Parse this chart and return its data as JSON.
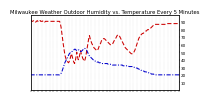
{
  "title": "Milwaukee Weather Outdoor Humidity vs. Temperature Every 5 Minutes",
  "line1_color": "#cc0000",
  "line2_color": "#0000cc",
  "line1_style": "--",
  "line2_style": "-.",
  "bg_color": "#ffffff",
  "grid_color": "#bbbbbb",
  "humidity": [
    93,
    92,
    91,
    91,
    92,
    91,
    90,
    90,
    91,
    92,
    91,
    90,
    91,
    92,
    91,
    91,
    91,
    92,
    91,
    90,
    91,
    91,
    91,
    91,
    91,
    91,
    91,
    91,
    91,
    91,
    91,
    91,
    91,
    91,
    91,
    91,
    91,
    91,
    91,
    91,
    88,
    83,
    75,
    68,
    60,
    53,
    47,
    43,
    40,
    38,
    37,
    36,
    38,
    41,
    45,
    48,
    44,
    40,
    37,
    35,
    38,
    44,
    50,
    44,
    40,
    42,
    47,
    52,
    48,
    45,
    42,
    40,
    38,
    40,
    44,
    50,
    56,
    62,
    68,
    72,
    68,
    65,
    62,
    60,
    58,
    56,
    55,
    54,
    53,
    52,
    53,
    55,
    58,
    60,
    62,
    65,
    67,
    68,
    68,
    68,
    67,
    66,
    65,
    64,
    63,
    62,
    61,
    60,
    60,
    60,
    61,
    63,
    65,
    67,
    68,
    70,
    72,
    73,
    73,
    72,
    70,
    68,
    66,
    64,
    62,
    60,
    58,
    56,
    55,
    54,
    53,
    52,
    51,
    50,
    49,
    48,
    48,
    48,
    49,
    51,
    53,
    56,
    59,
    62,
    65,
    68,
    70,
    72,
    73,
    74,
    75,
    75,
    76,
    77,
    78,
    78,
    79,
    80,
    80,
    80,
    81,
    82,
    83,
    84,
    85,
    86,
    87,
    87,
    87,
    87,
    87,
    87,
    87,
    87,
    87,
    87,
    87,
    87,
    87,
    87,
    87,
    87,
    88,
    88,
    88,
    88,
    88,
    88,
    88,
    88,
    88,
    88,
    88,
    88,
    88,
    88,
    88,
    88,
    88,
    88
  ],
  "temperature": [
    20,
    20,
    20,
    20,
    20,
    20,
    20,
    20,
    20,
    20,
    20,
    20,
    20,
    20,
    20,
    20,
    20,
    20,
    20,
    20,
    20,
    20,
    20,
    20,
    20,
    20,
    20,
    20,
    20,
    20,
    20,
    20,
    20,
    20,
    20,
    20,
    20,
    20,
    20,
    20,
    21,
    22,
    24,
    27,
    30,
    33,
    36,
    38,
    40,
    42,
    44,
    46,
    48,
    49,
    50,
    51,
    51,
    52,
    53,
    54,
    54,
    53,
    52,
    52,
    53,
    53,
    52,
    51,
    51,
    52,
    53,
    54,
    55,
    55,
    54,
    53,
    51,
    49,
    47,
    45,
    44,
    43,
    42,
    41,
    40,
    40,
    39,
    38,
    38,
    37,
    37,
    37,
    36,
    36,
    36,
    35,
    35,
    35,
    35,
    35,
    35,
    35,
    35,
    35,
    34,
    34,
    34,
    34,
    34,
    34,
    33,
    33,
    33,
    33,
    33,
    33,
    33,
    33,
    33,
    33,
    33,
    33,
    33,
    33,
    32,
    32,
    32,
    32,
    32,
    32,
    32,
    32,
    31,
    31,
    31,
    31,
    31,
    31,
    30,
    30,
    30,
    30,
    29,
    29,
    28,
    28,
    27,
    27,
    26,
    26,
    25,
    25,
    25,
    24,
    24,
    24,
    23,
    23,
    23,
    22,
    22,
    22,
    21,
    21,
    21,
    21,
    20,
    20,
    20,
    20,
    20,
    20,
    20,
    20,
    20,
    20,
    20,
    20,
    20,
    20,
    20,
    20,
    20,
    20,
    20,
    20,
    20,
    20,
    20,
    20,
    20,
    20,
    20,
    20,
    20,
    20,
    20,
    20,
    20,
    20
  ],
  "ylim": [
    0,
    100
  ],
  "yticks_right": [
    10,
    20,
    30,
    40,
    50,
    60,
    70,
    80,
    90
  ],
  "ytick_labels_right": [
    "10",
    "20",
    "30",
    "40",
    "50",
    "60",
    "70",
    "80",
    "90"
  ],
  "title_fontsize": 3.8,
  "tick_fontsize": 3.0,
  "linewidth": 0.75,
  "num_xticks": 40
}
